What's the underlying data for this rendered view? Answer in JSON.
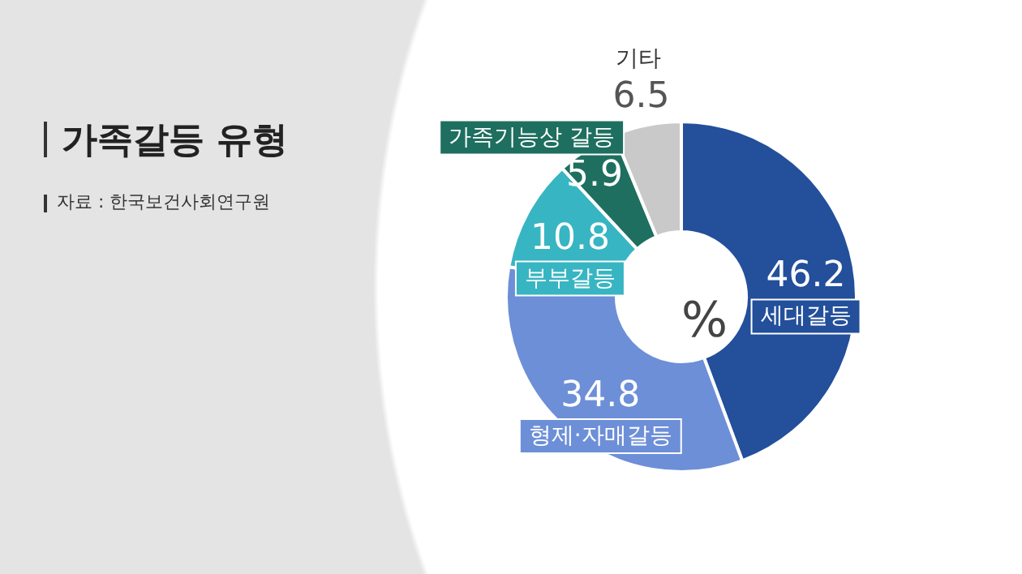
{
  "chart_data": {
    "type": "donut",
    "title": "가족갈등 유형",
    "annotations": [
      "자료 : 한국보건사회연구원",
      "%"
    ],
    "categories": [
      "세대갈등",
      "형제·자매갈등",
      "부부갈등",
      "가족기능상 갈등",
      "기타"
    ],
    "values": [
      46.2,
      34.8,
      10.8,
      5.9,
      6.5
    ],
    "colors": [
      "#234f9b",
      "#6d8fd8",
      "#38b5c2",
      "#1e6f5f",
      "#c9c9c9"
    ],
    "data_labels": true,
    "legend": false
  }
}
